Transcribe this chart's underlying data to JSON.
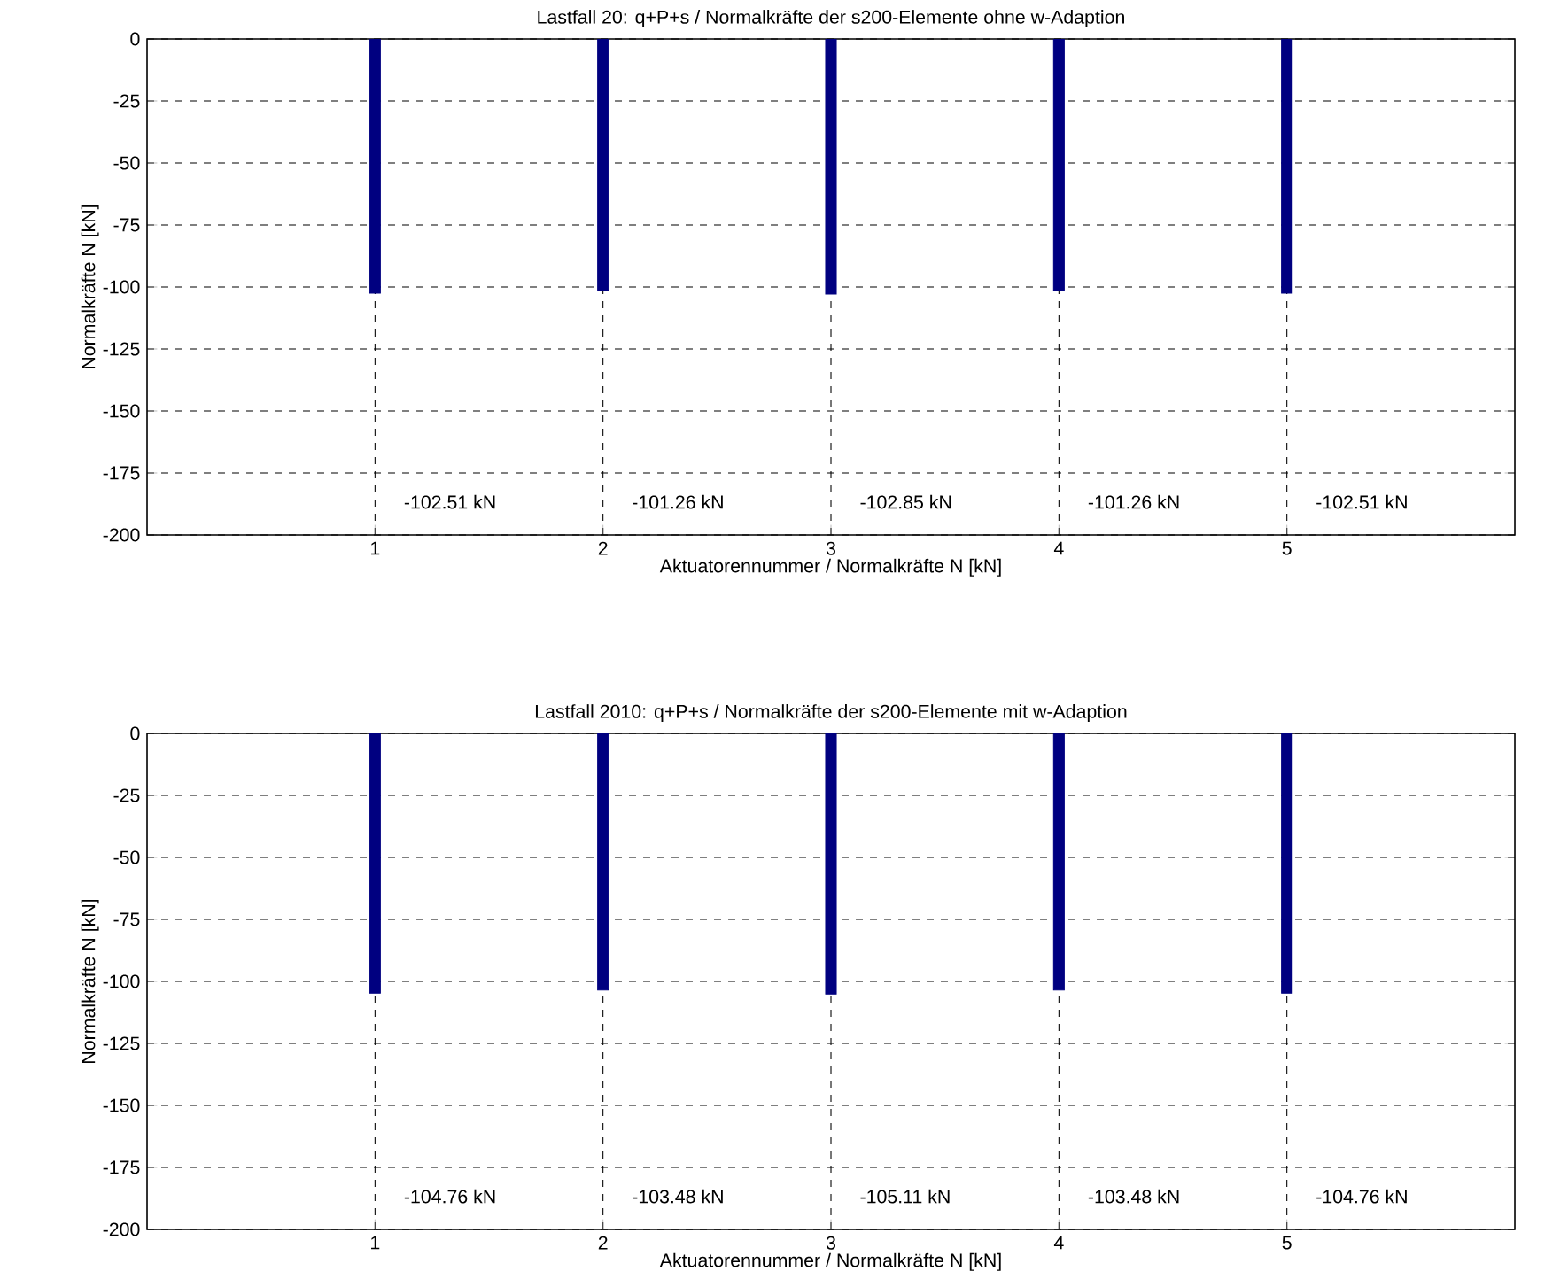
{
  "chart_data": [
    {
      "type": "bar",
      "title": "Lastfall 20: q+P+s / Normalkräfte der s200-Elemente ohne w-Adaption",
      "xlabel": "Aktuatorennummer / Normalkräfte N [kN]",
      "ylabel": "Normalkräfte N [kN]",
      "x": [
        1,
        2,
        3,
        4,
        5
      ],
      "values": [
        -102.51,
        -101.26,
        -102.85,
        -101.26,
        -102.51
      ],
      "color": "#000080",
      "xlim": [
        0,
        6
      ],
      "xticks": [
        1,
        2,
        3,
        4,
        5
      ],
      "ylim": [
        -200,
        0
      ],
      "yticks": [
        -200,
        -175,
        -150,
        -125,
        -100,
        -75,
        -50,
        -25,
        0
      ],
      "grid": true,
      "annotations": [
        "-102.51 kN",
        "-101.26 kN",
        "-102.85 kN",
        "-101.26 kN",
        "-102.51 kN"
      ]
    },
    {
      "type": "bar",
      "title": "Lastfall 2010: q+P+s / Normalkräfte der s200-Elemente mit w-Adaption",
      "xlabel": "Aktuatorennummer / Normalkräfte N [kN]",
      "ylabel": "Normalkräfte N [kN]",
      "x": [
        1,
        2,
        3,
        4,
        5
      ],
      "values": [
        -104.76,
        -103.48,
        -105.11,
        -103.48,
        -104.76
      ],
      "color": "#000080",
      "xlim": [
        0,
        6
      ],
      "xticks": [
        1,
        2,
        3,
        4,
        5
      ],
      "ylim": [
        -200,
        0
      ],
      "yticks": [
        -200,
        -175,
        -150,
        -125,
        -100,
        -75,
        -50,
        -25,
        0
      ],
      "grid": true,
      "annotations": [
        "-104.76 kN",
        "-103.48 kN",
        "-105.11 kN",
        "-103.48 kN",
        "-104.76 kN"
      ]
    }
  ]
}
